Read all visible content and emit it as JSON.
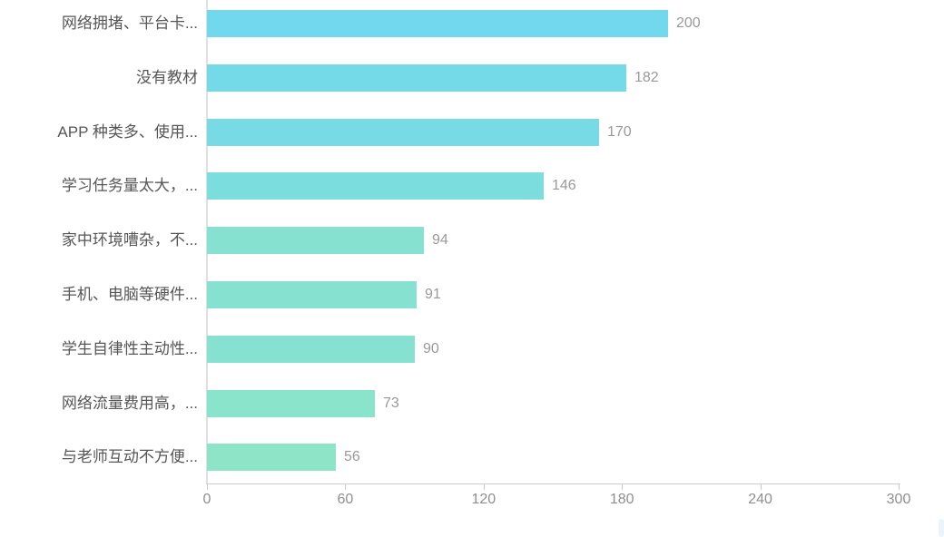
{
  "chart_data": {
    "type": "bar",
    "orientation": "horizontal",
    "title": "",
    "xlabel": "",
    "ylabel": "",
    "categories": [
      "网络拥堵、平台卡...",
      "没有教材",
      "APP 种类多、使用...",
      "学习任务量太大，...",
      "家中环境嘈杂，不...",
      "手机、电脑等硬件...",
      "学生自律性主动性...",
      "网络流量费用高，...",
      "与老师互动不方便..."
    ],
    "values": [
      200,
      182,
      170,
      146,
      94,
      91,
      90,
      73,
      56
    ],
    "bar_colors": [
      "#71d8ed",
      "#75dae8",
      "#77dae5",
      "#7cdddf",
      "#86e1d1",
      "#86e1d0",
      "#86e1d0",
      "#8ae3cb",
      "#8de4c7"
    ],
    "value_labels_shown": true,
    "x_ticks": [
      0,
      60,
      120,
      180,
      240,
      300
    ],
    "xlim": [
      0,
      300
    ],
    "grid": false,
    "legend": null
  },
  "style": {
    "background": "#ffffff",
    "axis_line_color": "#cccccc",
    "category_label_color": "#565656",
    "value_label_color": "#999999",
    "tick_label_color": "#8f8f8f"
  }
}
